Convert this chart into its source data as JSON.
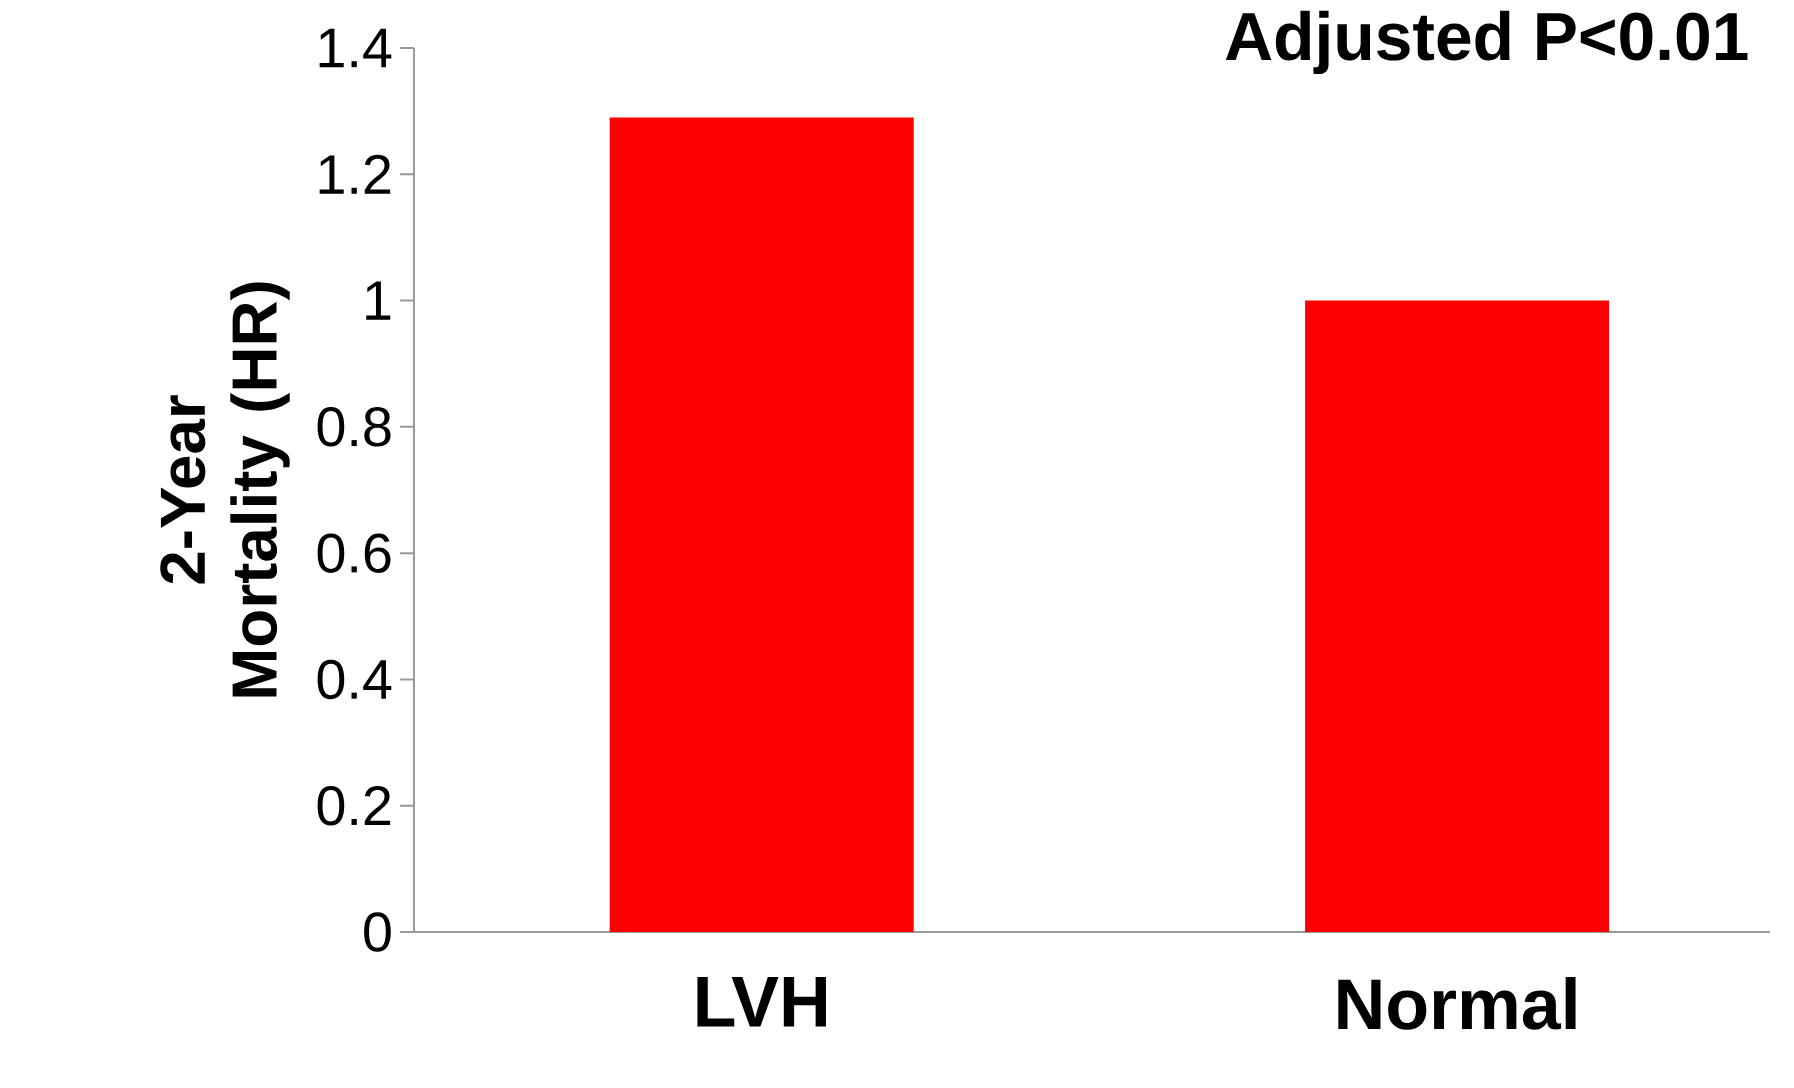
{
  "chart_data": {
    "type": "bar",
    "ylabel": "2-Year Mortality (HR)",
    "annotations": [
      "Adjusted P<0.01"
    ],
    "categories": [
      "LVH",
      "Normal"
    ],
    "values": [
      1.29,
      1.0
    ],
    "color": "#ff0000",
    "ylim": [
      0,
      1.4
    ],
    "yticks": [
      0,
      0.2,
      0.4,
      0.6,
      0.8,
      1,
      1.2,
      1.4
    ]
  }
}
